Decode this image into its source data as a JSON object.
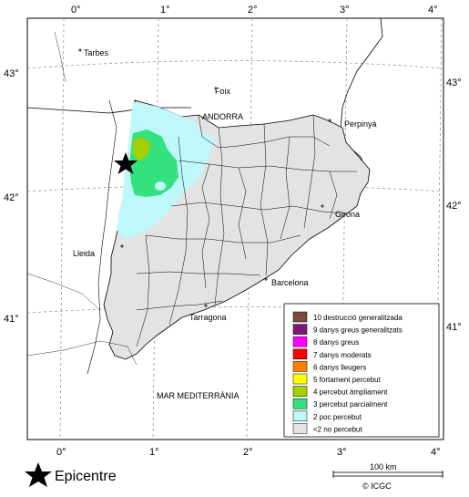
{
  "map": {
    "lon_labels": [
      "0°",
      "1°",
      "2°",
      "3°",
      "4°"
    ],
    "lat_labels": [
      "43°",
      "42°",
      "41°"
    ],
    "places": [
      {
        "name": "Tarbes"
      },
      {
        "name": "Foix"
      },
      {
        "name": "ANDORRA"
      },
      {
        "name": "Perpinyà"
      },
      {
        "name": "Girona"
      },
      {
        "name": "Lleida"
      },
      {
        "name": "Barcelona"
      },
      {
        "name": "Tarragona"
      },
      {
        "name": "MAR MEDITERRÀNIA"
      }
    ]
  },
  "legend": {
    "items": [
      {
        "label": "10 destrucció generalitzada",
        "color": "#7b4a3a"
      },
      {
        "label": "9 danys greus generalitzats",
        "color": "#7a1a78"
      },
      {
        "label": "8 danys greus",
        "color": "#ff00ff"
      },
      {
        "label": "7 danys moderats",
        "color": "#ff0000"
      },
      {
        "label": "6 danys lleugers",
        "color": "#ff8000"
      },
      {
        "label": "5 fortament percebut",
        "color": "#ffff00"
      },
      {
        "label": "4 percebut àmpliament",
        "color": "#a5d000"
      },
      {
        "label": "3 percebut parcialment",
        "color": "#33e17f"
      },
      {
        "label": "2 poc percebut",
        "color": "#bff8fb"
      },
      {
        "label": "<2 no percebut",
        "color": "#e3e3e3"
      }
    ]
  },
  "epicentre": {
    "label": "Epicentre"
  },
  "scale": {
    "label": "100 km"
  },
  "credit": {
    "text": "© ICGC"
  }
}
